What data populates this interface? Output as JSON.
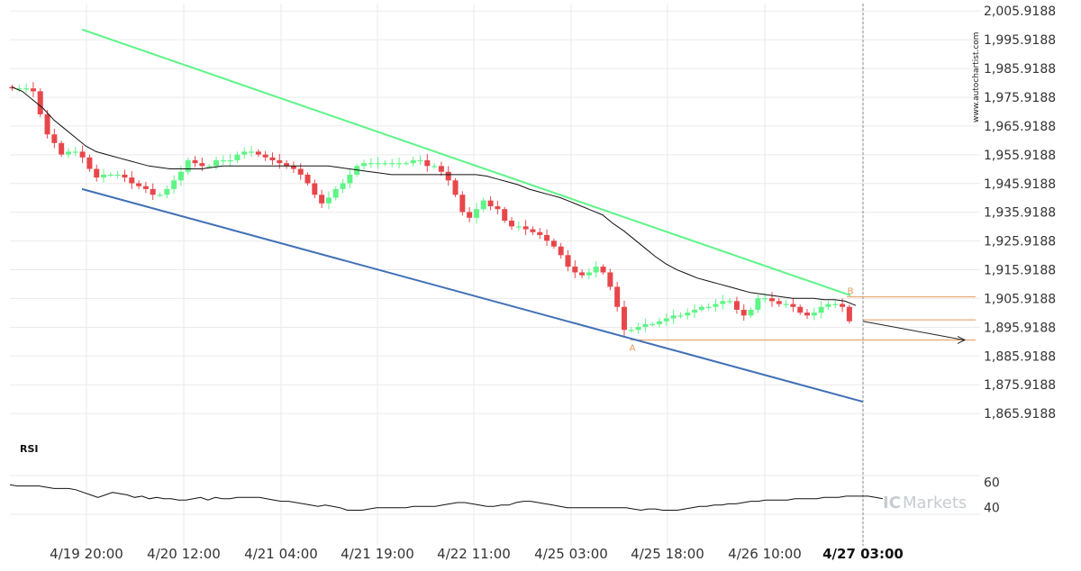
{
  "chart_data": {
    "type": "candlestick",
    "price_axis": {
      "ylim": [
        1860.0,
        2008.5
      ],
      "ticks": [
        2005.9188,
        1995.9188,
        1985.9188,
        1975.9188,
        1965.9188,
        1955.9188,
        1945.9188,
        1935.9188,
        1925.9188,
        1915.9188,
        1905.9188,
        1895.9188,
        1885.9188,
        1875.9188,
        1865.9188
      ],
      "tick_labels": [
        "2,005.9188",
        "1,995.9188",
        "1,985.9188",
        "1,975.9188",
        "1,965.9188",
        "1,955.9188",
        "1,945.9188",
        "1,935.9188",
        "1,925.9188",
        "1,915.9188",
        "1,905.9188",
        "1,895.9188",
        "1,885.9188",
        "1,875.9188",
        "1,865.9188"
      ]
    },
    "x_ticks": [
      "4/19 20:00",
      "4/20 12:00",
      "4/21 04:00",
      "4/21 19:00",
      "4/22 11:00",
      "4/25 03:00",
      "4/25 18:00",
      "4/26 10:00",
      "4/27 03:00"
    ],
    "current_time_label": "4/27 03:00",
    "bar_count": 120,
    "closes": [
      1979,
      1979,
      1979,
      1978,
      1970,
      1963,
      1960,
      1956,
      1957,
      1957,
      1955,
      1951,
      1948,
      1949,
      1949,
      1949,
      1948,
      1946,
      1945,
      1944,
      1942,
      1942,
      1944,
      1947,
      1950,
      1954,
      1953,
      1952,
      1952,
      1954,
      1954,
      1954,
      1956,
      1957,
      1957,
      1956,
      1955,
      1954,
      1953,
      1952,
      1951,
      1949,
      1946,
      1942,
      1939,
      1941,
      1944,
      1946,
      1949,
      1952,
      1953,
      1953,
      1953,
      1953,
      1953,
      1953,
      1953,
      1954,
      1954,
      1952,
      1952,
      1950,
      1947,
      1942,
      1936,
      1934,
      1937,
      1940,
      1938,
      1937,
      1933,
      1931,
      1931,
      1930,
      1929,
      1928,
      1926,
      1924,
      1921,
      1917,
      1915,
      1914,
      1915,
      1917,
      1915,
      1910,
      1903,
      1895,
      1895,
      1896,
      1897,
      1897,
      1898,
      1899,
      1900,
      1900,
      1901,
      1902,
      1903,
      1903,
      1904,
      1905,
      1905,
      1902,
      1900,
      1902,
      1906,
      1906,
      1905,
      1904,
      1904,
      1903,
      1901,
      1900,
      1901,
      1903,
      1904,
      1904,
      1903,
      1898
    ],
    "sma": [
      1979.5,
      1978,
      1975,
      1972,
      1968,
      1965,
      1962,
      1959,
      1957,
      1956,
      1955,
      1954,
      1953,
      1952,
      1951.5,
      1951,
      1951,
      1951,
      1951,
      1951.5,
      1952,
      1952,
      1952,
      1952,
      1952,
      1952,
      1952,
      1952,
      1952,
      1952,
      1952,
      1951.5,
      1951,
      1950.5,
      1950,
      1949.5,
      1949,
      1949,
      1949,
      1949,
      1949,
      1949,
      1949,
      1949,
      1949,
      1948.5,
      1947.5,
      1946.5,
      1945.5,
      1944,
      1943,
      1942,
      1941,
      1939.5,
      1938,
      1936.5,
      1935,
      1932,
      1929.5,
      1926.5,
      1923.5,
      1920.5,
      1918,
      1916,
      1914.5,
      1913,
      1912,
      1911,
      1910,
      1909,
      1908,
      1907.5,
      1907,
      1906.5,
      1906,
      1906,
      1906,
      1905.5,
      1905.5,
      1905,
      1903.5
    ],
    "resistance_line": {
      "from": {
        "bar": 9,
        "price": 1999.5
      },
      "to": {
        "bar": 114,
        "price": 1907
      }
    },
    "support_line": {
      "from": {
        "bar": 9,
        "price": 1944
      },
      "to": {
        "bar": 113,
        "price": 1870
      }
    },
    "horizontal_levels": [
      1906.5,
      1898.5,
      1891.5
    ],
    "point_a": {
      "label": "A",
      "price": 1891.5
    },
    "point_b": {
      "label": "B",
      "price": 1906.5
    },
    "rsi": {
      "label": "RSI",
      "ticks": [
        60,
        40
      ],
      "ylim": [
        20,
        80
      ],
      "values": [
        58,
        57,
        57,
        57,
        57,
        56,
        55,
        55,
        55,
        54,
        52,
        50,
        48,
        50,
        52,
        51,
        50,
        48,
        49,
        47,
        48,
        47,
        47,
        46,
        46,
        47,
        48,
        46,
        48,
        47,
        47,
        48,
        48,
        48,
        48,
        47,
        46,
        45,
        45,
        44,
        43,
        42,
        41,
        42,
        41,
        40,
        38,
        38,
        38,
        39,
        40,
        40,
        40,
        40,
        40,
        41,
        41,
        41,
        41,
        42,
        43,
        44,
        44,
        43,
        42,
        41,
        41,
        42,
        42,
        44,
        45,
        45,
        44,
        43,
        42,
        41,
        40,
        40,
        40,
        40,
        40,
        40,
        40,
        40,
        40,
        39,
        38,
        39,
        39,
        38,
        38,
        38,
        39,
        40,
        41,
        41,
        42,
        42,
        43,
        43,
        44,
        45,
        45,
        46,
        46,
        46,
        46,
        47,
        47,
        47,
        47,
        48,
        48,
        48,
        49,
        49,
        49,
        49,
        48,
        47
      ]
    },
    "watermark_text": "www.autochartist.com",
    "brand": {
      "ic": "IC",
      "markets": "Markets"
    },
    "colors": {
      "up": "#5ef586",
      "down": "#e7474b",
      "resistance": "#5ef586",
      "support": "#4070b8",
      "sma": "#111111",
      "levels": "#e69a5a",
      "labels_ab": "#e69a5a"
    }
  }
}
